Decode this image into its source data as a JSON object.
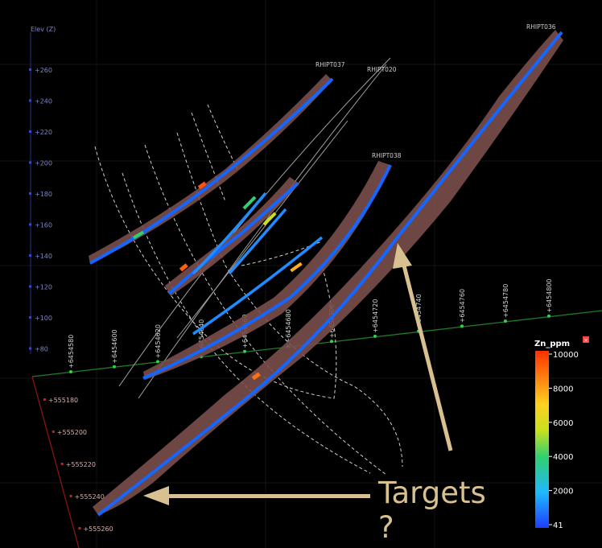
{
  "axis": {
    "elev_title": "Elev (Z)",
    "elev_ticks": [
      "260",
      "240",
      "220",
      "200",
      "180",
      "160",
      "140",
      "120",
      "100",
      "80"
    ],
    "northing_ticks": [
      "6454580",
      "6454600",
      "6454620",
      "6454640",
      "6454660",
      "6454680",
      "6454700",
      "6454720",
      "6454740",
      "6454760",
      "6454780",
      "6454800"
    ],
    "easting_ticks": [
      "555180",
      "555200",
      "555220",
      "555240",
      "555260"
    ]
  },
  "drillholes": [
    "RHIPT036",
    "RHIPT037",
    "RHIPT038",
    "RHIPT020"
  ],
  "legend": {
    "title": "Zn_ppm",
    "ticks": [
      "10000",
      "8000",
      "6000",
      "4000",
      "2000",
      "41"
    ]
  },
  "annotation": {
    "targets_line1": "Targets",
    "targets_line2": "?"
  },
  "colors": {
    "hole_blue": "#1565ff",
    "histogram": "#8a5a58",
    "arrow": "#d8c090"
  },
  "icons": [
    "close-icon"
  ]
}
